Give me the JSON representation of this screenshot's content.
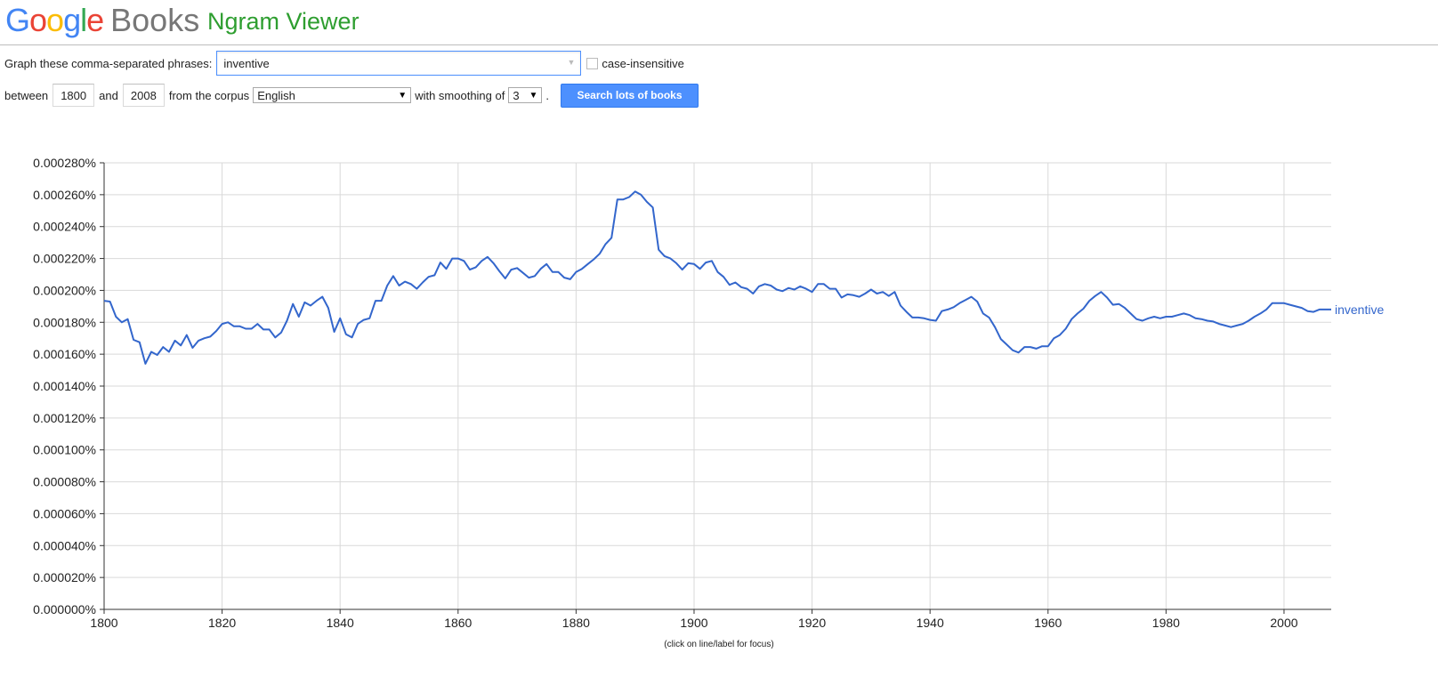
{
  "logo": {
    "google_letters": [
      "G",
      "o",
      "o",
      "g",
      "l",
      "e"
    ],
    "google_colors": [
      "#4285f4",
      "#ea4335",
      "#fbbc05",
      "#4285f4",
      "#34a853",
      "#ea4335"
    ],
    "books": "Books",
    "app_title": "Ngram Viewer"
  },
  "controls": {
    "phrases_label": "Graph these comma-separated phrases:",
    "phrases_value": "inventive",
    "case_insensitive_label": "case-insensitive",
    "case_insensitive_checked": false,
    "between_label": "between",
    "start_year": "1800",
    "and_label": "and",
    "end_year": "2008",
    "corpus_label": "from the corpus",
    "corpus_value": "English",
    "smoothing_label": "with smoothing of",
    "smoothing_value": "3",
    "period": ".",
    "search_button": "Search lots of books"
  },
  "caption": "(click on line/label for focus)",
  "chart_data": {
    "type": "line",
    "x_range": [
      1800,
      2008
    ],
    "ylim": [
      0,
      0.00028
    ],
    "yticks": [
      "0.000000%",
      "0.000020%",
      "0.000040%",
      "0.000060%",
      "0.000080%",
      "0.000100%",
      "0.000120%",
      "0.000140%",
      "0.000160%",
      "0.000180%",
      "0.000200%",
      "0.000220%",
      "0.000240%",
      "0.000260%",
      "0.000280%"
    ],
    "xticks": [
      "1800",
      "1820",
      "1840",
      "1860",
      "1880",
      "1900",
      "1920",
      "1940",
      "1960",
      "1980",
      "2000"
    ],
    "grid": true,
    "line_color": "#3366cc",
    "series": [
      {
        "name": "inventive",
        "x": [
          1800,
          1801,
          1802,
          1803,
          1804,
          1805,
          1806,
          1807,
          1808,
          1809,
          1810,
          1811,
          1812,
          1813,
          1814,
          1815,
          1816,
          1817,
          1818,
          1819,
          1820,
          1821,
          1822,
          1823,
          1824,
          1825,
          1826,
          1827,
          1828,
          1829,
          1830,
          1831,
          1832,
          1833,
          1834,
          1835,
          1836,
          1837,
          1838,
          1839,
          1840,
          1841,
          1842,
          1843,
          1844,
          1845,
          1846,
          1847,
          1848,
          1849,
          1850,
          1851,
          1852,
          1853,
          1854,
          1855,
          1856,
          1857,
          1858,
          1859,
          1860,
          1861,
          1862,
          1863,
          1864,
          1865,
          1866,
          1867,
          1868,
          1869,
          1870,
          1871,
          1872,
          1873,
          1874,
          1875,
          1876,
          1877,
          1878,
          1879,
          1880,
          1881,
          1882,
          1883,
          1884,
          1885,
          1886,
          1887,
          1888,
          1889,
          1890,
          1891,
          1892,
          1893,
          1894,
          1895,
          1896,
          1897,
          1898,
          1899,
          1900,
          1901,
          1902,
          1903,
          1904,
          1905,
          1906,
          1907,
          1908,
          1909,
          1910,
          1911,
          1912,
          1913,
          1914,
          1915,
          1916,
          1917,
          1918,
          1919,
          1920,
          1921,
          1922,
          1923,
          1924,
          1925,
          1926,
          1927,
          1928,
          1929,
          1930,
          1931,
          1932,
          1933,
          1934,
          1935,
          1936,
          1937,
          1938,
          1939,
          1940,
          1941,
          1942,
          1943,
          1944,
          1945,
          1946,
          1947,
          1948,
          1949,
          1950,
          1951,
          1952,
          1953,
          1954,
          1955,
          1956,
          1957,
          1958,
          1959,
          1960,
          1961,
          1962,
          1963,
          1964,
          1965,
          1966,
          1967,
          1968,
          1969,
          1970,
          1971,
          1972,
          1973,
          1974,
          1975,
          1976,
          1977,
          1978,
          1979,
          1980,
          1981,
          1982,
          1983,
          1984,
          1985,
          1986,
          1987,
          1988,
          1989,
          1990,
          1991,
          1992,
          1993,
          1994,
          1995,
          1996,
          1997,
          1998,
          1999,
          2000,
          2001,
          2002,
          2003,
          2004,
          2005,
          2006,
          2007,
          2008
        ],
        "y": [
          0.0001935,
          0.000193,
          0.0001835,
          0.00018,
          0.000182,
          0.000169,
          0.0001675,
          0.000154,
          0.0001615,
          0.0001595,
          0.0001645,
          0.0001615,
          0.0001685,
          0.0001655,
          0.000172,
          0.000164,
          0.0001685,
          0.00017,
          0.000171,
          0.0001745,
          0.000179,
          0.00018,
          0.0001775,
          0.0001775,
          0.000176,
          0.000176,
          0.000179,
          0.0001755,
          0.0001755,
          0.0001705,
          0.0001735,
          0.000181,
          0.0001915,
          0.0001835,
          0.0001925,
          0.0001905,
          0.0001935,
          0.000196,
          0.000189,
          0.000174,
          0.0001825,
          0.0001725,
          0.0001705,
          0.000179,
          0.0001815,
          0.0001825,
          0.0001935,
          0.0001935,
          0.000203,
          0.000209,
          0.000203,
          0.0002055,
          0.000204,
          0.000201,
          0.000205,
          0.0002085,
          0.0002095,
          0.0002175,
          0.0002135,
          0.00022,
          0.00022,
          0.0002185,
          0.000213,
          0.0002145,
          0.0002185,
          0.000221,
          0.000217,
          0.000212,
          0.0002075,
          0.000213,
          0.000214,
          0.000211,
          0.000208,
          0.000209,
          0.0002135,
          0.0002165,
          0.0002115,
          0.0002115,
          0.000208,
          0.000207,
          0.0002115,
          0.0002135,
          0.0002165,
          0.0002195,
          0.000223,
          0.000229,
          0.000233,
          0.000257,
          0.000257,
          0.0002585,
          0.000262,
          0.00026,
          0.0002555,
          0.000252,
          0.0002255,
          0.0002215,
          0.00022,
          0.000217,
          0.000213,
          0.000217,
          0.0002165,
          0.0002135,
          0.0002175,
          0.0002185,
          0.0002115,
          0.0002085,
          0.0002035,
          0.000205,
          0.000202,
          0.000201,
          0.000198,
          0.0002025,
          0.000204,
          0.000203,
          0.0002005,
          0.0001995,
          0.0002015,
          0.0002005,
          0.0002025,
          0.000201,
          0.000199,
          0.000204,
          0.000204,
          0.000201,
          0.000201,
          0.0001955,
          0.0001975,
          0.000197,
          0.000196,
          0.000198,
          0.0002005,
          0.000198,
          0.000199,
          0.0001965,
          0.000199,
          0.0001905,
          0.0001865,
          0.000183,
          0.000183,
          0.0001825,
          0.0001815,
          0.000181,
          0.000187,
          0.000188,
          0.0001895,
          0.000192,
          0.000194,
          0.000196,
          0.000193,
          0.0001855,
          0.000183,
          0.000177,
          0.0001695,
          0.000166,
          0.0001625,
          0.000161,
          0.0001645,
          0.0001645,
          0.0001635,
          0.000165,
          0.000165,
          0.00017,
          0.000172,
          0.000176,
          0.000182,
          0.0001855,
          0.0001885,
          0.0001935,
          0.0001965,
          0.000199,
          0.0001955,
          0.000191,
          0.0001915,
          0.000189,
          0.0001855,
          0.000182,
          0.000181,
          0.0001825,
          0.0001835,
          0.0001825,
          0.0001835,
          0.0001835,
          0.0001845,
          0.0001855,
          0.0001845,
          0.0001825,
          0.000182,
          0.000181,
          0.0001805,
          0.000179,
          0.000178,
          0.000177,
          0.000178,
          0.000179,
          0.000181,
          0.0001835,
          0.0001855,
          0.000188,
          0.000192,
          0.000192,
          0.000192,
          0.000191,
          0.00019,
          0.000189,
          0.000187,
          0.0001865,
          0.000188,
          0.000188,
          0.000188
        ]
      }
    ]
  }
}
